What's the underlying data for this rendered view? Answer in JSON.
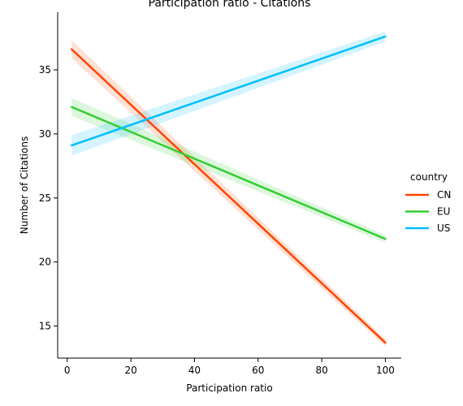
{
  "chart_data": {
    "type": "line",
    "title": "Participation ratio - Citations",
    "xlabel": "Participation ratio",
    "ylabel": "Number of Citations",
    "xlim": [
      -3,
      105
    ],
    "ylim": [
      12.5,
      39.5
    ],
    "xticks": [
      0,
      20,
      40,
      60,
      80,
      100
    ],
    "yticks": [
      15,
      20,
      25,
      30,
      35
    ],
    "grid": false,
    "legend": {
      "title": "country",
      "placement": "right"
    },
    "series": [
      {
        "name": "CN",
        "color": "#ff4500",
        "x": [
          1.4,
          100
        ],
        "y": [
          36.6,
          13.7
        ],
        "band_start": [
          35.9,
          37.3
        ],
        "band_end": [
          13.4,
          14.0
        ]
      },
      {
        "name": "EU",
        "color": "#32cd32",
        "x": [
          1.4,
          100
        ],
        "y": [
          32.1,
          21.8
        ],
        "band_start": [
          31.4,
          32.8
        ],
        "band_end": [
          21.5,
          22.1
        ]
      },
      {
        "name": "US",
        "color": "#00bfff",
        "x": [
          1.4,
          100
        ],
        "y": [
          29.1,
          37.6
        ],
        "band_start": [
          28.3,
          29.9
        ],
        "band_end": [
          37.2,
          38.0
        ]
      }
    ]
  }
}
